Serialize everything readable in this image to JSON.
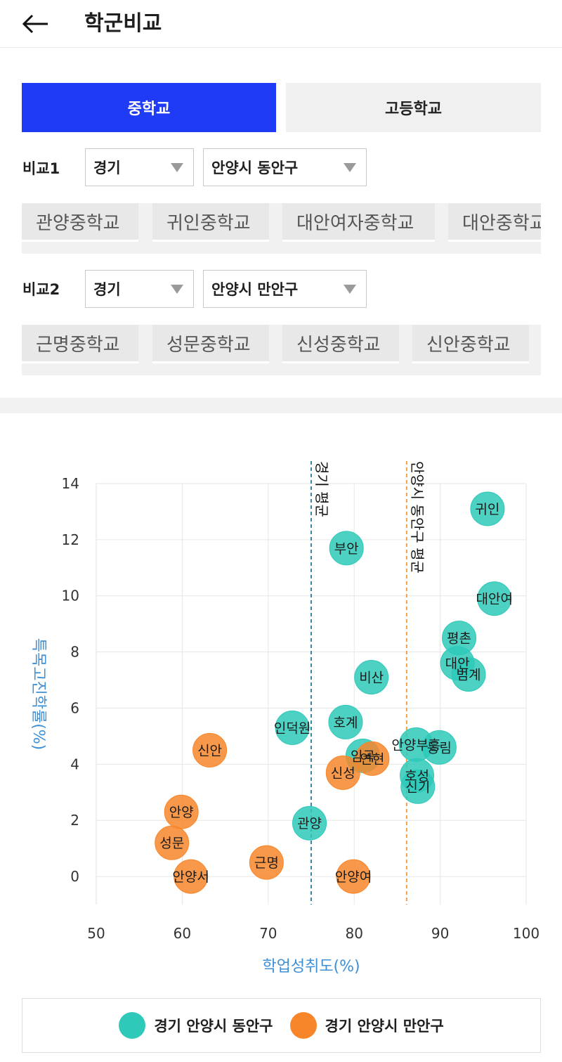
{
  "header": {
    "title": "학군비교",
    "back_icon": "arrow-left-icon"
  },
  "tabs": [
    {
      "label": "중학교",
      "active": true
    },
    {
      "label": "고등학교",
      "active": false
    }
  ],
  "compare1": {
    "label": "비교1",
    "province": "경기",
    "district": "안양시 동안구",
    "schools": [
      "관양중학교",
      "귀인중학교",
      "대안여자중학교",
      "대안중학교"
    ]
  },
  "compare2": {
    "label": "비교2",
    "province": "경기",
    "district": "안양시 만안구",
    "schools": [
      "근명중학교",
      "성문중학교",
      "신성중학교",
      "신안중학교"
    ]
  },
  "colors": {
    "accent": "#1f3bf5",
    "series1": "#2ec9b9",
    "series2": "#f7862a",
    "axis_label": "#3d8fd6"
  },
  "chart_data": {
    "type": "scatter",
    "xlabel": "학업성취도(%)",
    "ylabel": "특목고진학률(%)",
    "xlim": [
      50,
      100
    ],
    "ylim": [
      -1,
      14
    ],
    "x_ticks": [
      50,
      60,
      70,
      80,
      90,
      100
    ],
    "y_ticks": [
      0,
      2,
      4,
      6,
      8,
      10,
      12,
      14
    ],
    "grid": true,
    "legend_position": "bottom",
    "reference_lines": [
      {
        "label": "경기 평균",
        "x": 75.0,
        "color": "#3a86a6"
      },
      {
        "label": "안양시 동안구 평균",
        "x": 86.1,
        "color": "#f2a04a"
      }
    ],
    "series": [
      {
        "name": "경기 안양시 동안구",
        "color": "#2ec9b9",
        "points": [
          {
            "label": "귀인",
            "x": 95.5,
            "y": 13.1
          },
          {
            "label": "부안",
            "x": 79.1,
            "y": 11.7
          },
          {
            "label": "대안여",
            "x": 96.3,
            "y": 9.9
          },
          {
            "label": "평촌",
            "x": 92.2,
            "y": 8.5
          },
          {
            "label": "대안",
            "x": 92.0,
            "y": 7.6
          },
          {
            "label": "범계",
            "x": 93.3,
            "y": 7.2
          },
          {
            "label": "비산",
            "x": 82.0,
            "y": 7.1
          },
          {
            "label": "호계",
            "x": 79.0,
            "y": 5.5
          },
          {
            "label": "인덕원",
            "x": 72.8,
            "y": 5.3
          },
          {
            "label": "안양부흥",
            "x": 87.2,
            "y": 4.7
          },
          {
            "label": "동림",
            "x": 89.9,
            "y": 4.6
          },
          {
            "label": "임곡",
            "x": 81.0,
            "y": 4.3
          },
          {
            "label": "호성",
            "x": 87.3,
            "y": 3.6
          },
          {
            "label": "신기",
            "x": 87.4,
            "y": 3.2
          },
          {
            "label": "관양",
            "x": 74.8,
            "y": 1.9
          }
        ]
      },
      {
        "name": "경기 안양시 만안구",
        "color": "#f7862a",
        "points": [
          {
            "label": "신안",
            "x": 63.2,
            "y": 4.5
          },
          {
            "label": "연현",
            "x": 82.1,
            "y": 4.2
          },
          {
            "label": "신성",
            "x": 78.7,
            "y": 3.7
          },
          {
            "label": "안양",
            "x": 59.9,
            "y": 2.3
          },
          {
            "label": "성문",
            "x": 58.8,
            "y": 1.2
          },
          {
            "label": "근명",
            "x": 69.8,
            "y": 0.5
          },
          {
            "label": "안양서",
            "x": 61.0,
            "y": 0.0
          },
          {
            "label": "안양여",
            "x": 79.9,
            "y": 0.0
          }
        ]
      }
    ]
  }
}
